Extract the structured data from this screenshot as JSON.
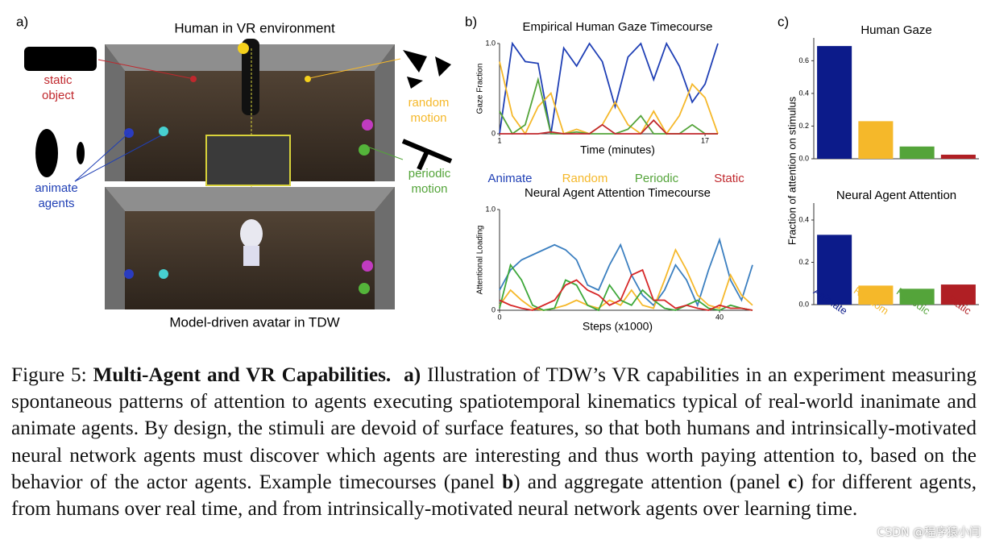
{
  "panel_a": {
    "label": "a)",
    "top_title": "Human in VR environment",
    "bottom_title": "Model-driven avatar in TDW",
    "static_label": [
      "static",
      "object"
    ],
    "random_label": [
      "random",
      "motion"
    ],
    "periodic_label": [
      "periodic",
      "motion"
    ],
    "animate_label": [
      "animate",
      "agents"
    ]
  },
  "panel_b": {
    "label": "b)"
  },
  "panel_c": {
    "label": "c)",
    "ylabel": "Fraction of attention on stimulus"
  },
  "chart_data": [
    {
      "type": "line",
      "title": "Empirical Human Gaze Timecourse",
      "ylabel": "Gaze Fraction",
      "xlabel": "Time (minutes)",
      "x": [
        1,
        2,
        3,
        4,
        5,
        6,
        7,
        8,
        9,
        10,
        11,
        12,
        13,
        14,
        15,
        16,
        17,
        18
      ],
      "xlim": [
        1,
        18
      ],
      "xticks": [
        1,
        17
      ],
      "ylim": [
        0,
        1
      ],
      "yticks": [
        0,
        {
          "value": 1,
          "label": "1.0"
        }
      ],
      "series": [
        {
          "name": "Animate",
          "color": "#1f3fb5",
          "values": [
            0,
            1.0,
            0.8,
            0.78,
            0,
            0.95,
            0.75,
            1.0,
            0.8,
            0.3,
            0.85,
            1.0,
            0.6,
            1.0,
            0.75,
            0.35,
            0.55,
            1.0
          ]
        },
        {
          "name": "Random",
          "color": "#f5b82a",
          "values": [
            0.8,
            0.2,
            0,
            0.3,
            0.45,
            0,
            0.05,
            0,
            0.1,
            0.35,
            0.1,
            0,
            0.25,
            0,
            0.2,
            0.55,
            0.4,
            0
          ]
        },
        {
          "name": "Periodic",
          "color": "#54a43a",
          "values": [
            0.25,
            0,
            0.1,
            0.6,
            0,
            0,
            0.02,
            0,
            0,
            0,
            0.05,
            0.2,
            0,
            0,
            0,
            0.1,
            0,
            0
          ]
        },
        {
          "name": "Static",
          "color": "#c0282d",
          "values": [
            0,
            0,
            0,
            0,
            0.02,
            0,
            0,
            0,
            0.1,
            0,
            0,
            0,
            0.15,
            0,
            0,
            0,
            0,
            0
          ]
        }
      ]
    },
    {
      "type": "line",
      "title": "Neural Agent Attention Timecourse",
      "ylabel": "Attentional Loading",
      "xlabel": "Steps (x1000)",
      "x": [
        0,
        2,
        4,
        6,
        8,
        10,
        12,
        14,
        16,
        18,
        20,
        22,
        24,
        26,
        28,
        30,
        32,
        34,
        36,
        38,
        40,
        42,
        44,
        46
      ],
      "xlim": [
        0,
        46
      ],
      "xticks": [
        0,
        40
      ],
      "ylim": [
        0,
        1
      ],
      "yticks": [
        0,
        {
          "value": 1,
          "label": "1.0"
        }
      ],
      "series": [
        {
          "name": "Animate",
          "color": "#3b7fc0",
          "values": [
            0.2,
            0.4,
            0.5,
            0.55,
            0.6,
            0.65,
            0.6,
            0.5,
            0.25,
            0.2,
            0.45,
            0.65,
            0.35,
            0.15,
            0.05,
            0.2,
            0.45,
            0.3,
            0.05,
            0.4,
            0.7,
            0.3,
            0.1,
            0.45
          ]
        },
        {
          "name": "Random",
          "color": "#f5b82a",
          "values": [
            0.05,
            0.2,
            0.1,
            0.02,
            0,
            0.02,
            0.05,
            0.1,
            0.05,
            0.02,
            0.1,
            0.05,
            0.2,
            0.05,
            0.02,
            0.3,
            0.6,
            0.4,
            0.15,
            0.05,
            0.02,
            0.35,
            0.15,
            0.05
          ]
        },
        {
          "name": "Periodic",
          "color": "#3ea83a",
          "values": [
            0.02,
            0.45,
            0.3,
            0.05,
            0,
            0.02,
            0.3,
            0.25,
            0.05,
            0,
            0.25,
            0.1,
            0.05,
            0.2,
            0.1,
            0.02,
            0,
            0.05,
            0.1,
            0.02,
            0,
            0.05,
            0.02,
            0
          ]
        },
        {
          "name": "Static",
          "color": "#d62728",
          "values": [
            0.1,
            0.05,
            0.02,
            0,
            0.05,
            0.1,
            0.25,
            0.3,
            0.2,
            0.15,
            0.05,
            0.1,
            0.35,
            0.4,
            0.1,
            0.1,
            0.02,
            0.05,
            0.02,
            0,
            0.05,
            0.02,
            0.02,
            0
          ]
        }
      ]
    },
    {
      "type": "bar",
      "title": "Human Gaze",
      "categories": [
        null,
        null,
        null,
        null
      ],
      "values": [
        0.69,
        0.23,
        0.075,
        0.025
      ],
      "colors": [
        "#0c1b8a",
        "#f5b82a",
        "#54a43a",
        "#b01f24"
      ],
      "ylim": [
        0,
        0.74
      ],
      "yticks": [
        {
          "value": 0,
          "label": "0.0"
        },
        0.2,
        0.4,
        0.6
      ]
    },
    {
      "type": "bar",
      "title": "Neural Agent Attention",
      "categories": [
        "Animate",
        "Random",
        "Periodic",
        "Static"
      ],
      "values": [
        0.33,
        0.09,
        0.075,
        0.095
      ],
      "colors": [
        "#0c1b8a",
        "#f5b82a",
        "#54a43a",
        "#b01f24"
      ],
      "ylim": [
        0,
        0.48
      ],
      "yticks": [
        {
          "value": 0,
          "label": "0.0"
        },
        0.2,
        0.4
      ]
    }
  ],
  "caption": {
    "label": "Figure 5:",
    "title": "Multi-Agent and VR Capabilities.",
    "panel_a_ref": "a)",
    "body_1": "Illustration of TDW’s VR capabilities in an experiment measuring spontaneous patterns of attention to agents executing spatiotemporal kinematics typical of real-world inanimate and animate agents. By design, the stimuli are devoid of surface features, so that both humans and intrinsically-motivated neural network agents must discover which agents are interesting and thus worth paying attention to, based on the behavior of the actor agents. Example timecourses (panel",
    "ref_b": "b",
    "body_2": ") and aggregate attention (panel",
    "ref_c": "c",
    "body_3": ") for different agents, from humans over real time, and from intrinsically-motivated neural network agents over learning time."
  },
  "watermark": "CSDN @程序猿小闫"
}
